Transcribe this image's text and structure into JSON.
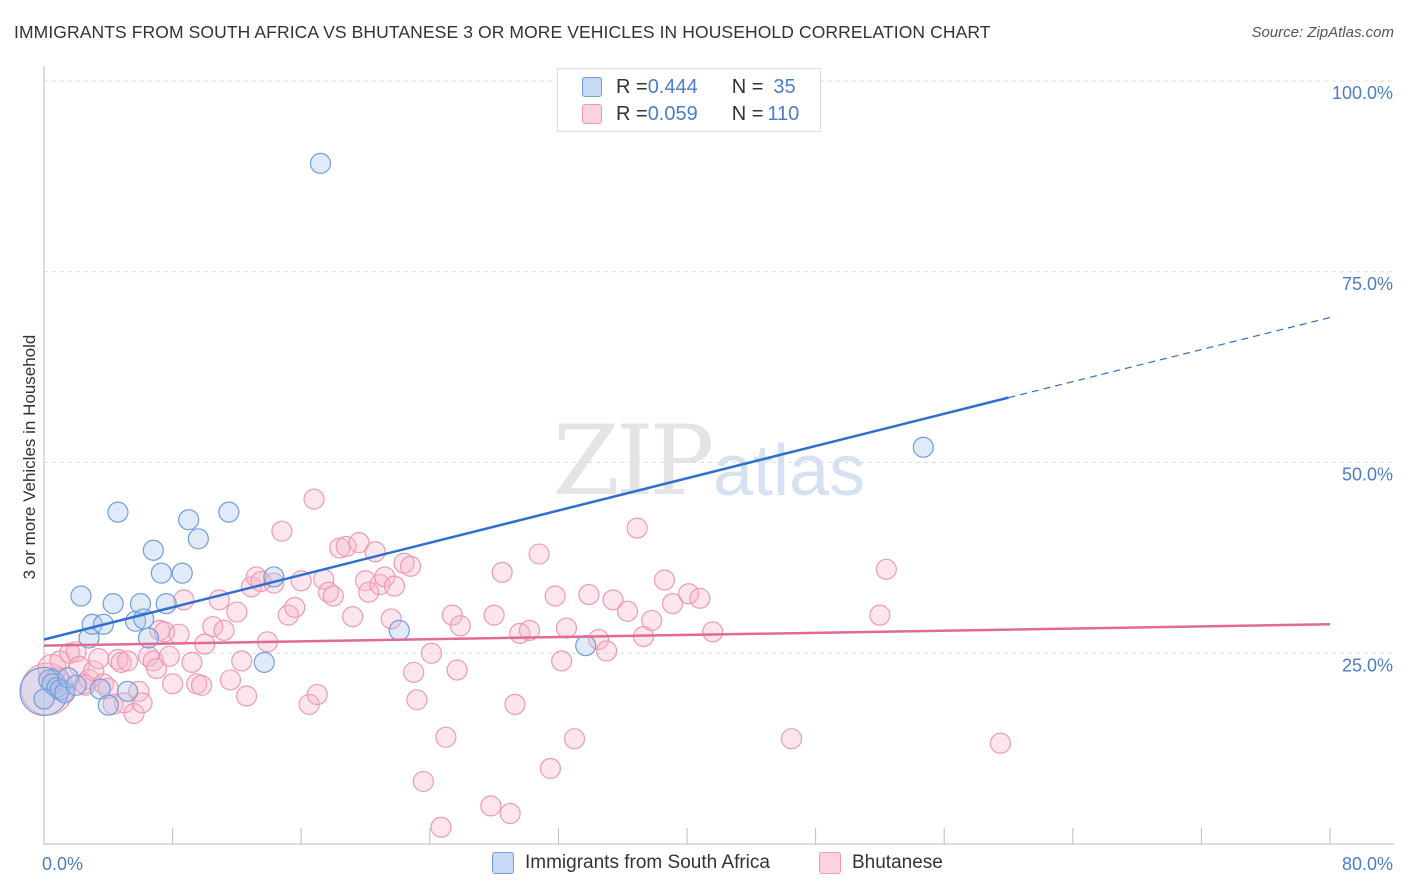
{
  "title": "IMMIGRANTS FROM SOUTH AFRICA VS BHUTANESE 3 OR MORE VEHICLES IN HOUSEHOLD CORRELATION CHART",
  "source": "Source: ZipAtlas.com",
  "watermark": {
    "zip": "ZIP",
    "atlas": "atlas"
  },
  "legend_top": {
    "rows": [
      {
        "r_label": "R = ",
        "r_value": "0.444",
        "n_label": "N = ",
        "n_value": "35",
        "color": "#a8c4ec"
      },
      {
        "r_label": "R = ",
        "r_value": "0.059",
        "n_label": "N = ",
        "n_value": "110",
        "color": "#f5b5c8"
      }
    ]
  },
  "legend_bottom": [
    {
      "label": "Immigrants from South Africa",
      "color": "#a8c4ec"
    },
    {
      "label": "Bhutanese",
      "color": "#f5b5c8"
    }
  ],
  "chart_data": {
    "type": "scatter",
    "ylabel": "3 or more Vehicles in Household",
    "xlim": [
      0,
      80
    ],
    "ylim": [
      0,
      100
    ],
    "x_tick_labels": [
      "0.0%",
      "80.0%"
    ],
    "y_ticks": [
      25,
      50,
      75,
      100
    ],
    "y_tick_labels": [
      "25.0%",
      "50.0%",
      "75.0%",
      "100.0%"
    ],
    "grid": true,
    "series": [
      {
        "name": "Immigrants from South Africa",
        "color": "#6f9ede",
        "fill": "#a8c4ec",
        "trend_color": "#2f6fce",
        "trend": {
          "x0": 0,
          "y0": 26.8,
          "x1": 60,
          "y1": 58.5,
          "x_dash_end": 80,
          "y_dash_end": 69.0
        },
        "points": [
          [
            0.0,
            20.0
          ],
          [
            0.3,
            21.5
          ],
          [
            0.5,
            21.0
          ],
          [
            0.8,
            20.5
          ],
          [
            1.0,
            20.2
          ],
          [
            1.3,
            19.8
          ],
          [
            1.5,
            21.8
          ],
          [
            2.0,
            20.8
          ],
          [
            2.3,
            32.5
          ],
          [
            2.8,
            27.0
          ],
          [
            3.0,
            28.8
          ],
          [
            3.5,
            20.3
          ],
          [
            3.7,
            28.8
          ],
          [
            4.0,
            18.2
          ],
          [
            4.3,
            31.5
          ],
          [
            4.6,
            43.5
          ],
          [
            5.2,
            20.0
          ],
          [
            5.7,
            29.2
          ],
          [
            6.0,
            31.5
          ],
          [
            6.2,
            29.5
          ],
          [
            6.5,
            27.0
          ],
          [
            6.8,
            38.5
          ],
          [
            7.3,
            35.5
          ],
          [
            7.6,
            31.5
          ],
          [
            8.6,
            35.5
          ],
          [
            9.0,
            42.5
          ],
          [
            9.6,
            40.0
          ],
          [
            11.5,
            43.5
          ],
          [
            13.7,
            23.8
          ],
          [
            14.3,
            35.0
          ],
          [
            17.2,
            89.2
          ],
          [
            22.1,
            28.0
          ],
          [
            33.7,
            26.0
          ],
          [
            54.7,
            52.0
          ],
          [
            0.0,
            19.0
          ]
        ],
        "sizes": [
          24,
          10,
          10,
          10,
          10,
          10,
          10,
          10,
          10,
          10,
          10,
          10,
          10,
          10,
          10,
          10,
          10,
          10,
          10,
          10,
          10,
          10,
          10,
          10,
          10,
          10,
          10,
          10,
          10,
          10,
          10,
          10,
          10,
          10,
          10
        ]
      },
      {
        "name": "Bhutanese",
        "color": "#ee9ab5",
        "fill": "#f5b5c8",
        "trend_color": "#e06a94",
        "trend": {
          "x0": 0,
          "y0": 26.0,
          "x1": 80,
          "y1": 28.8
        },
        "points": [
          [
            0.2,
            20.3
          ],
          [
            0.5,
            23.0
          ],
          [
            0.8,
            21.5
          ],
          [
            1.0,
            24.0
          ],
          [
            1.3,
            20.0
          ],
          [
            1.6,
            25.0
          ],
          [
            2.0,
            25.2
          ],
          [
            2.2,
            23.3
          ],
          [
            2.5,
            21.0
          ],
          [
            2.6,
            20.8
          ],
          [
            2.8,
            21.6
          ],
          [
            3.1,
            22.7
          ],
          [
            3.4,
            24.3
          ],
          [
            3.7,
            21.0
          ],
          [
            4.0,
            20.4
          ],
          [
            4.3,
            18.3
          ],
          [
            4.6,
            24.2
          ],
          [
            4.8,
            23.8
          ],
          [
            5.0,
            18.5
          ],
          [
            5.2,
            24.0
          ],
          [
            5.6,
            17.1
          ],
          [
            5.9,
            20.0
          ],
          [
            6.1,
            18.5
          ],
          [
            6.5,
            24.6
          ],
          [
            6.8,
            24.0
          ],
          [
            7.0,
            23.0
          ],
          [
            7.2,
            28.0
          ],
          [
            7.5,
            27.8
          ],
          [
            7.8,
            24.6
          ],
          [
            8.0,
            21.0
          ],
          [
            8.4,
            27.5
          ],
          [
            8.7,
            32.0
          ],
          [
            9.2,
            23.8
          ],
          [
            9.5,
            21.0
          ],
          [
            9.8,
            20.8
          ],
          [
            10.0,
            26.2
          ],
          [
            10.5,
            28.5
          ],
          [
            10.9,
            32.0
          ],
          [
            11.2,
            28.0
          ],
          [
            11.6,
            21.5
          ],
          [
            12.0,
            30.4
          ],
          [
            12.3,
            24.0
          ],
          [
            12.6,
            19.4
          ],
          [
            12.9,
            33.7
          ],
          [
            13.2,
            35.0
          ],
          [
            13.5,
            34.4
          ],
          [
            13.9,
            26.5
          ],
          [
            14.3,
            34.2
          ],
          [
            14.8,
            41.0
          ],
          [
            15.2,
            30.0
          ],
          [
            15.6,
            31.0
          ],
          [
            16.0,
            34.5
          ],
          [
            16.5,
            18.3
          ],
          [
            16.8,
            45.2
          ],
          [
            17.0,
            19.6
          ],
          [
            17.4,
            34.7
          ],
          [
            17.7,
            33.0
          ],
          [
            18.0,
            32.5
          ],
          [
            18.4,
            38.8
          ],
          [
            18.8,
            39.0
          ],
          [
            19.2,
            29.8
          ],
          [
            19.6,
            39.5
          ],
          [
            20.0,
            34.5
          ],
          [
            20.2,
            33.0
          ],
          [
            20.6,
            38.3
          ],
          [
            20.9,
            34.0
          ],
          [
            21.2,
            35.0
          ],
          [
            21.6,
            29.5
          ],
          [
            21.8,
            33.8
          ],
          [
            22.4,
            36.8
          ],
          [
            22.8,
            36.4
          ],
          [
            23.0,
            22.5
          ],
          [
            23.2,
            18.9
          ],
          [
            23.6,
            8.2
          ],
          [
            24.1,
            25.0
          ],
          [
            24.7,
            2.2
          ],
          [
            25.0,
            14.0
          ],
          [
            25.4,
            30.0
          ],
          [
            25.7,
            22.8
          ],
          [
            25.9,
            28.6
          ],
          [
            27.8,
            5.0
          ],
          [
            28.0,
            30.0
          ],
          [
            28.5,
            35.6
          ],
          [
            29.0,
            4.0
          ],
          [
            29.3,
            18.3
          ],
          [
            29.6,
            27.6
          ],
          [
            30.2,
            28.0
          ],
          [
            30.8,
            38.0
          ],
          [
            31.5,
            9.9
          ],
          [
            31.8,
            32.5
          ],
          [
            32.2,
            24.0
          ],
          [
            32.5,
            28.3
          ],
          [
            33.0,
            13.8
          ],
          [
            33.9,
            32.7
          ],
          [
            34.5,
            26.8
          ],
          [
            35.0,
            25.3
          ],
          [
            35.4,
            32.0
          ],
          [
            36.3,
            30.5
          ],
          [
            36.9,
            41.4
          ],
          [
            37.3,
            27.2
          ],
          [
            37.8,
            29.3
          ],
          [
            38.6,
            34.6
          ],
          [
            39.1,
            31.5
          ],
          [
            40.1,
            32.8
          ],
          [
            40.8,
            32.2
          ],
          [
            41.6,
            27.8
          ],
          [
            46.5,
            13.8
          ],
          [
            52.4,
            36.0
          ],
          [
            59.5,
            13.2
          ],
          [
            52.0,
            30.0
          ]
        ],
        "sizes": [
          26,
          14,
          12,
          10,
          10,
          10,
          10,
          10,
          10,
          10,
          10,
          10,
          10,
          10,
          10,
          10,
          10,
          10,
          10,
          10,
          10,
          10,
          10,
          10,
          10,
          10,
          10,
          10,
          10,
          10,
          10,
          10,
          10,
          10,
          10,
          10,
          10,
          10,
          10,
          10,
          10,
          10,
          10,
          10,
          10,
          10,
          10,
          10,
          10,
          10,
          10,
          10,
          10,
          10,
          10,
          10,
          10,
          10,
          10,
          10,
          10,
          10,
          10,
          10,
          10,
          10,
          10,
          10,
          10,
          10,
          10,
          10,
          10,
          10,
          10,
          10,
          10,
          10,
          10,
          10,
          10,
          10,
          10,
          10,
          10,
          10,
          10,
          10,
          10,
          10,
          10,
          10,
          10,
          10,
          10,
          10,
          10,
          10,
          10,
          10,
          10,
          10,
          10,
          10,
          10,
          10,
          10,
          10,
          10,
          10
        ]
      }
    ]
  }
}
